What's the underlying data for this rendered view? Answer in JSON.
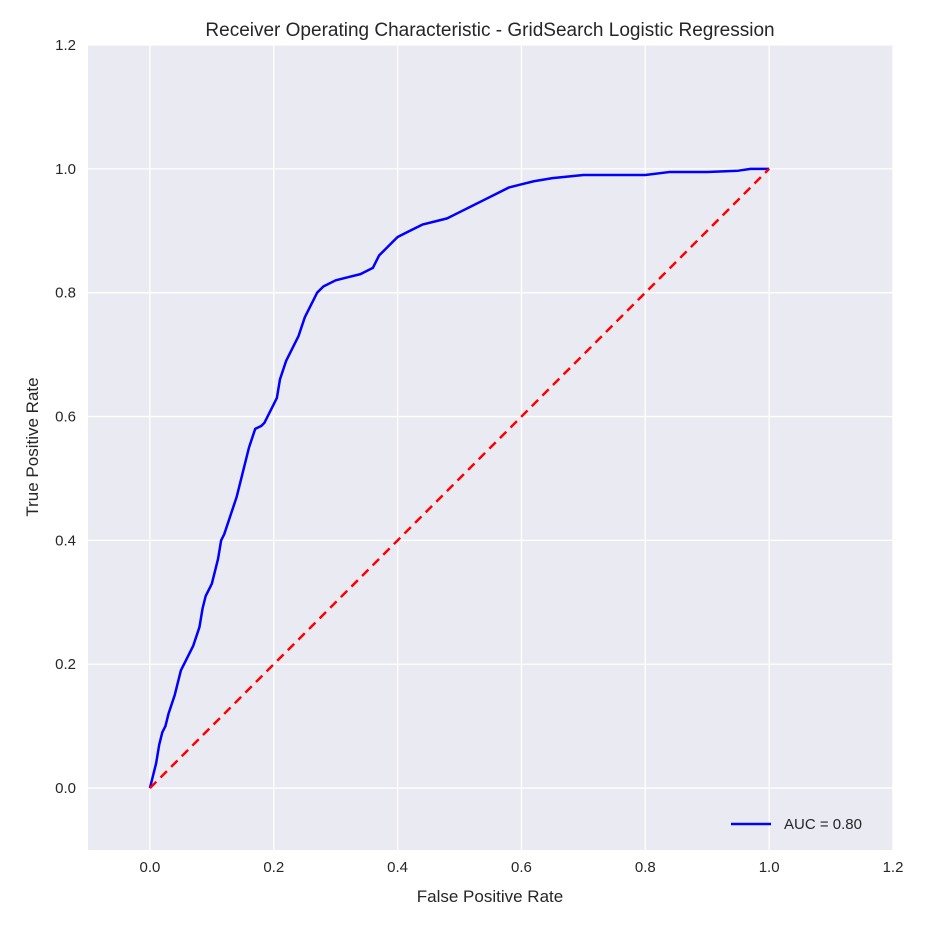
{
  "chart_data": {
    "type": "line",
    "title": "Receiver Operating Characteristic - GridSearch Logistic Regression",
    "xlabel": "False Positive Rate",
    "ylabel": "True Positive Rate",
    "xlim": [
      -0.1,
      1.2
    ],
    "ylim": [
      -0.1,
      1.2
    ],
    "xticks": [
      "0.0",
      "0.2",
      "0.4",
      "0.6",
      "0.8",
      "1.0",
      "1.2"
    ],
    "yticks": [
      "0.0",
      "0.2",
      "0.4",
      "0.6",
      "0.8",
      "1.0",
      "1.2"
    ],
    "grid": true,
    "legend_position": "lower-right",
    "series": [
      {
        "name": "AUC = 0.80",
        "color": "#0000ff",
        "style": "solid",
        "x": [
          0.0,
          0.005,
          0.01,
          0.015,
          0.02,
          0.025,
          0.03,
          0.04,
          0.05,
          0.05,
          0.06,
          0.07,
          0.08,
          0.085,
          0.09,
          0.095,
          0.1,
          0.11,
          0.115,
          0.12,
          0.13,
          0.14,
          0.15,
          0.16,
          0.17,
          0.18,
          0.185,
          0.2,
          0.205,
          0.21,
          0.22,
          0.23,
          0.24,
          0.25,
          0.26,
          0.265,
          0.27,
          0.28,
          0.3,
          0.32,
          0.34,
          0.36,
          0.37,
          0.38,
          0.39,
          0.4,
          0.42,
          0.44,
          0.46,
          0.48,
          0.5,
          0.52,
          0.54,
          0.56,
          0.58,
          0.6,
          0.62,
          0.65,
          0.7,
          0.8,
          0.84,
          0.9,
          0.95,
          0.97,
          1.0
        ],
        "y": [
          0.0,
          0.02,
          0.04,
          0.07,
          0.09,
          0.1,
          0.12,
          0.15,
          0.19,
          0.19,
          0.21,
          0.23,
          0.26,
          0.29,
          0.31,
          0.32,
          0.33,
          0.37,
          0.4,
          0.41,
          0.44,
          0.47,
          0.51,
          0.55,
          0.58,
          0.585,
          0.59,
          0.62,
          0.63,
          0.66,
          0.69,
          0.71,
          0.73,
          0.76,
          0.78,
          0.79,
          0.8,
          0.81,
          0.82,
          0.825,
          0.83,
          0.84,
          0.86,
          0.87,
          0.88,
          0.89,
          0.9,
          0.91,
          0.915,
          0.92,
          0.93,
          0.94,
          0.95,
          0.96,
          0.97,
          0.975,
          0.98,
          0.985,
          0.99,
          0.99,
          0.995,
          0.995,
          0.997,
          1.0,
          1.0
        ]
      },
      {
        "name": "",
        "color": "#ff0000",
        "style": "dashed",
        "x": [
          0.0,
          1.0
        ],
        "y": [
          0.0,
          1.0
        ]
      }
    ]
  }
}
